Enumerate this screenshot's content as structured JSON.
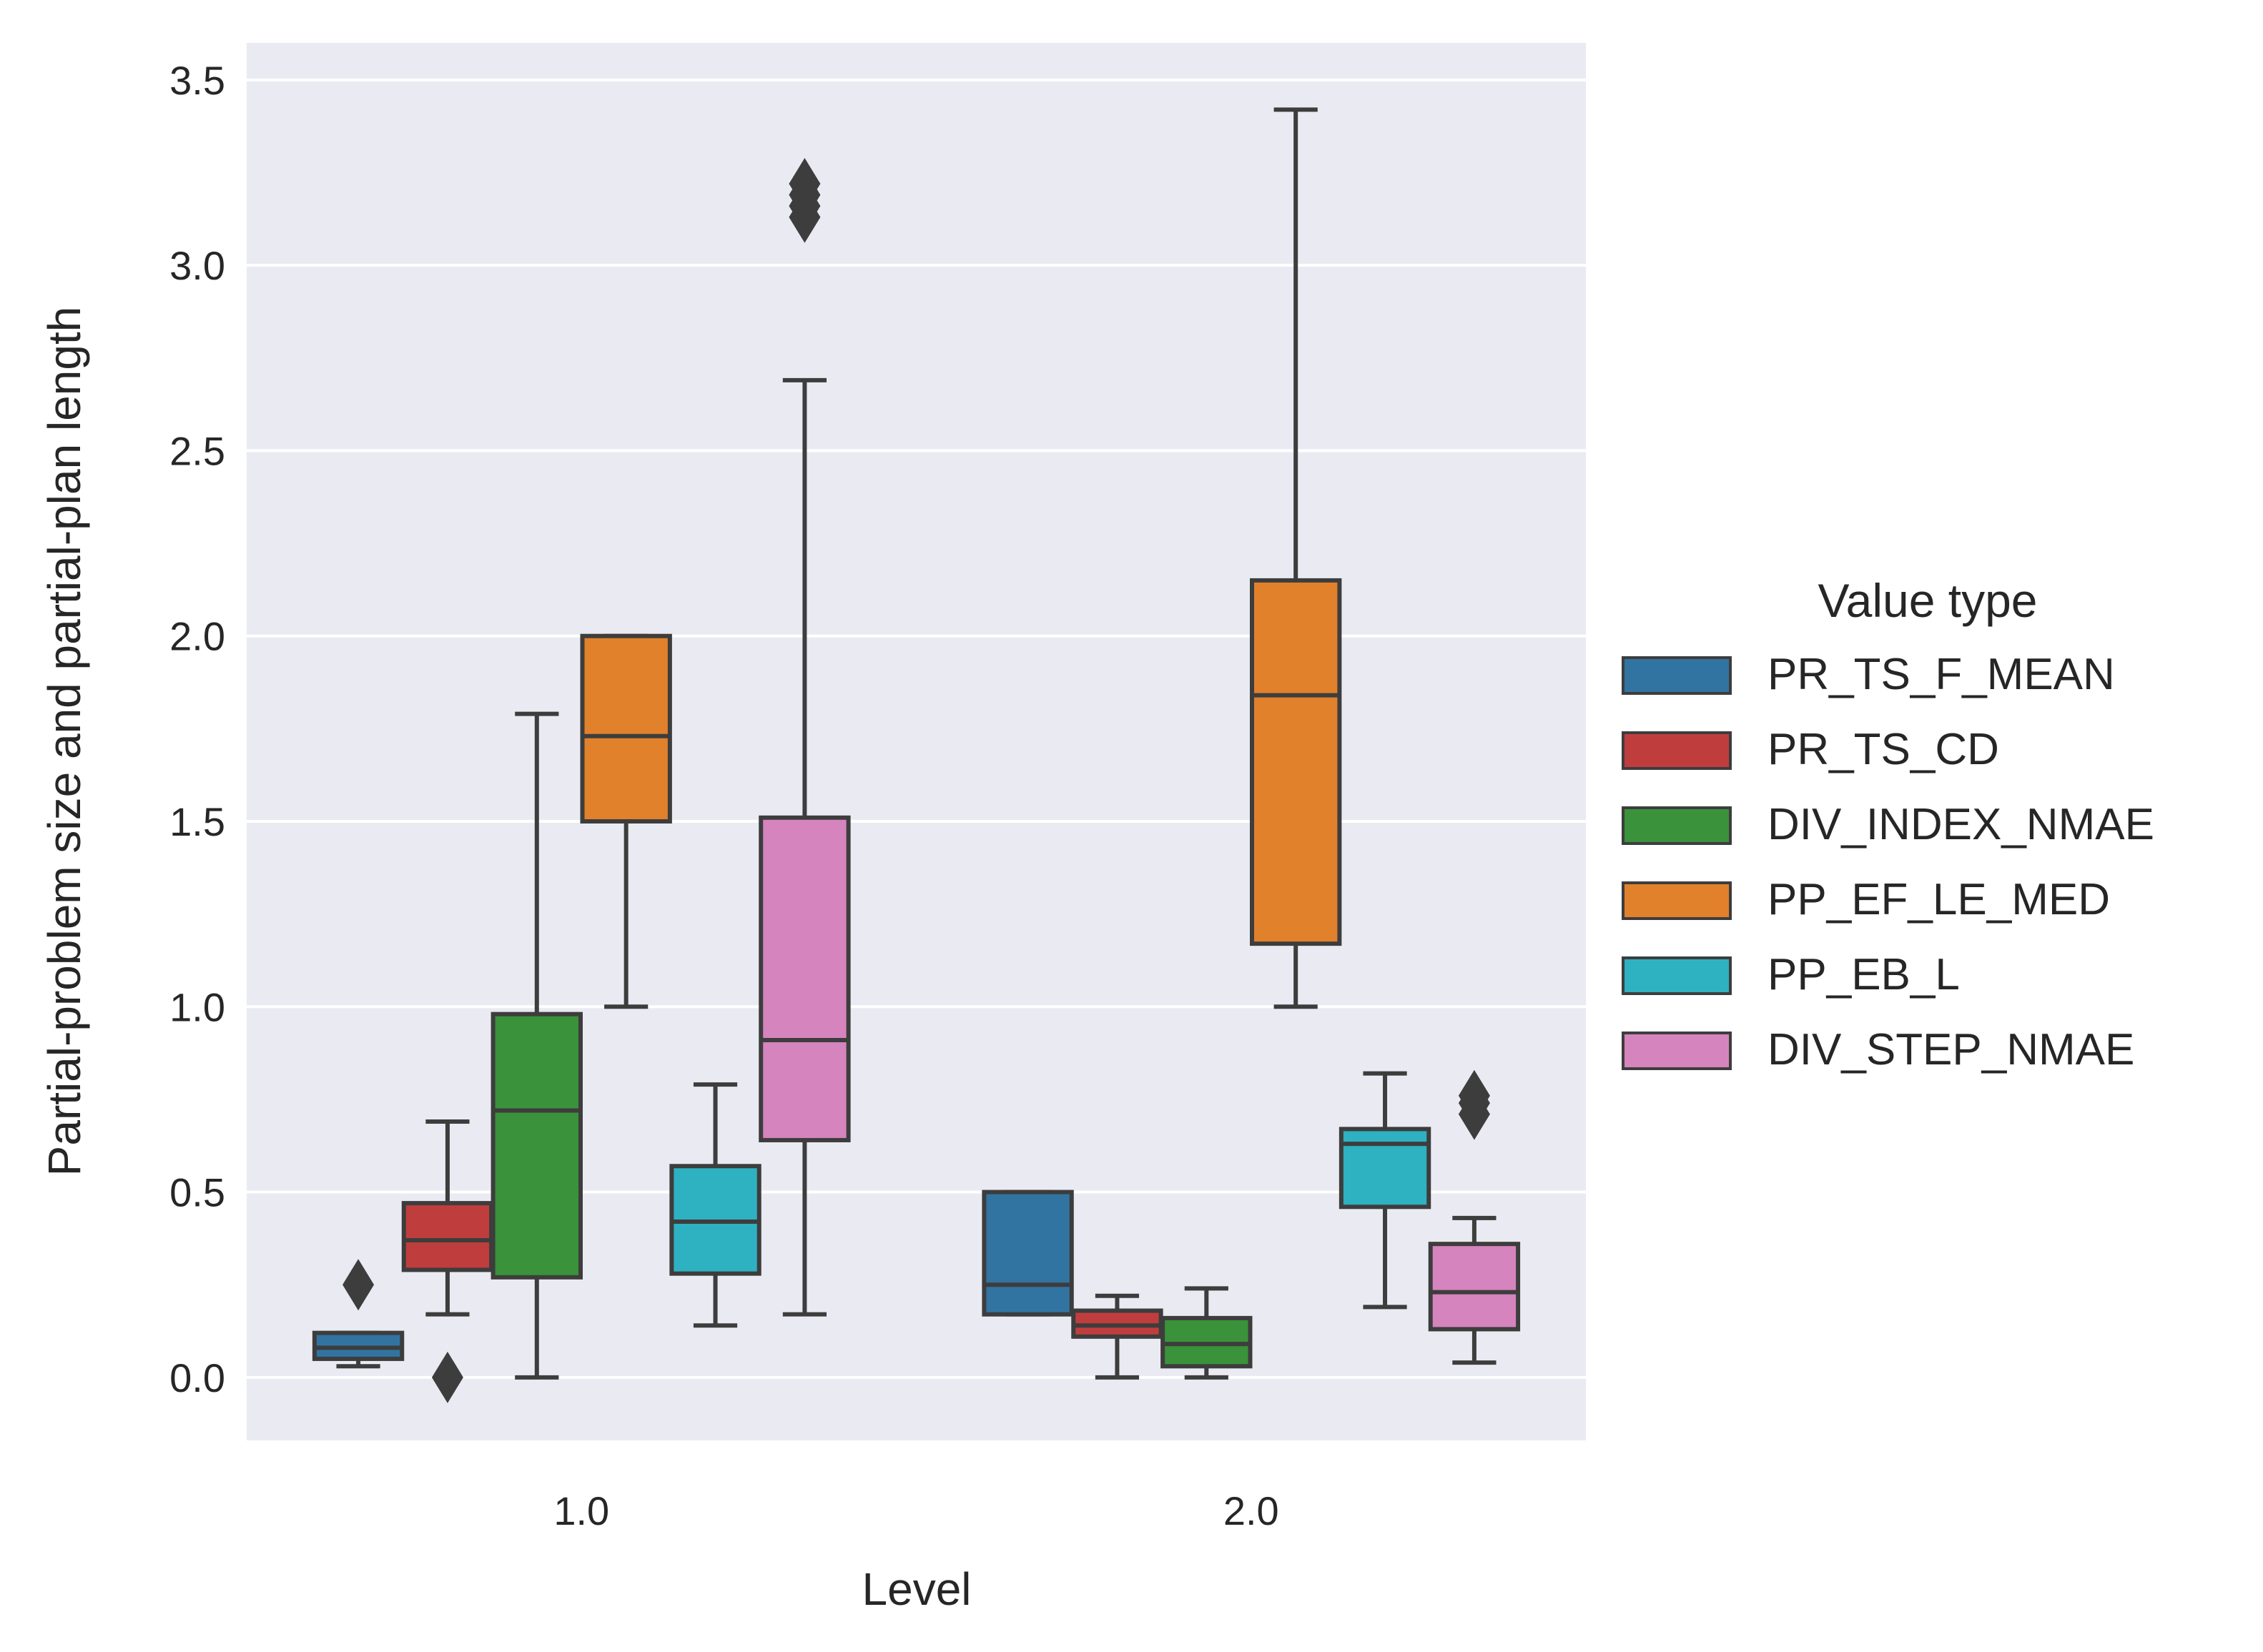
{
  "chart_data": {
    "type": "box",
    "xlabel": "Level",
    "ylabel": "Partial-problem size and partial-plan length",
    "categories": [
      "1.0",
      "2.0"
    ],
    "ylim": [
      -0.17,
      3.6
    ],
    "yticks": [
      0.0,
      0.5,
      1.0,
      1.5,
      2.0,
      2.5,
      3.0,
      3.5
    ],
    "ytick_labels": [
      "0.0",
      "0.5",
      "1.0",
      "1.5",
      "2.0",
      "2.5",
      "3.0",
      "3.5"
    ],
    "grid": true,
    "legend": {
      "title": "Value type",
      "placement": "outside-right"
    },
    "series": [
      {
        "name": "PR_TS_F_MEAN",
        "color": "#3274a1",
        "boxes": [
          {
            "whisker_low": 0.03,
            "q1": 0.05,
            "median": 0.08,
            "q3": 0.12,
            "whisker_high": 0.12,
            "outliers": [
              0.25
            ]
          },
          {
            "whisker_low": 0.17,
            "q1": 0.17,
            "median": 0.25,
            "q3": 0.5,
            "whisker_high": 0.5,
            "outliers": []
          }
        ]
      },
      {
        "name": "PR_TS_CD",
        "color": "#c03d3e",
        "boxes": [
          {
            "whisker_low": 0.17,
            "q1": 0.29,
            "median": 0.37,
            "q3": 0.47,
            "whisker_high": 0.69,
            "outliers": [
              0.0
            ]
          },
          {
            "whisker_low": 0.0,
            "q1": 0.11,
            "median": 0.14,
            "q3": 0.18,
            "whisker_high": 0.22,
            "outliers": []
          }
        ]
      },
      {
        "name": "DIV_INDEX_NMAE",
        "color": "#3a923a",
        "boxes": [
          {
            "whisker_low": 0.0,
            "q1": 0.27,
            "median": 0.72,
            "q3": 0.98,
            "whisker_high": 1.79,
            "outliers": []
          },
          {
            "whisker_low": 0.0,
            "q1": 0.03,
            "median": 0.09,
            "q3": 0.16,
            "whisker_high": 0.24,
            "outliers": []
          }
        ]
      },
      {
        "name": "PP_EF_LE_MED",
        "color": "#e1812c",
        "boxes": [
          {
            "whisker_low": 1.0,
            "q1": 1.5,
            "median": 1.73,
            "q3": 2.0,
            "whisker_high": 2.0,
            "outliers": []
          },
          {
            "whisker_low": 1.0,
            "q1": 1.17,
            "median": 1.84,
            "q3": 2.15,
            "whisker_high": 3.42,
            "outliers": []
          }
        ]
      },
      {
        "name": "PP_EB_L",
        "color": "#2eb1c1",
        "boxes": [
          {
            "whisker_low": 0.14,
            "q1": 0.28,
            "median": 0.42,
            "q3": 0.57,
            "whisker_high": 0.79,
            "outliers": []
          },
          {
            "whisker_low": 0.19,
            "q1": 0.46,
            "median": 0.63,
            "q3": 0.67,
            "whisker_high": 0.82,
            "outliers": []
          }
        ]
      },
      {
        "name": "DIV_STEP_NMAE",
        "color": "#d684bd",
        "boxes": [
          {
            "whisker_low": 0.17,
            "q1": 0.64,
            "median": 0.91,
            "q3": 1.51,
            "whisker_high": 2.69,
            "outliers": [
              3.13,
              3.16,
              3.19,
              3.22
            ]
          },
          {
            "whisker_low": 0.04,
            "q1": 0.13,
            "median": 0.23,
            "q3": 0.36,
            "whisker_high": 0.43,
            "outliers": [
              0.71,
              0.74,
              0.76
            ]
          }
        ]
      }
    ]
  }
}
